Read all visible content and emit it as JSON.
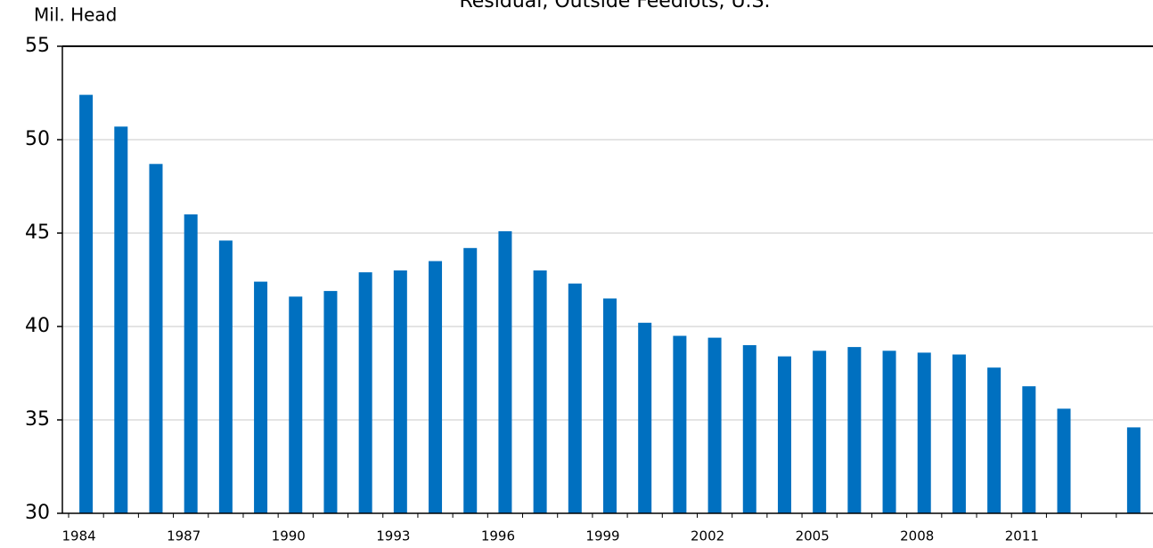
{
  "chart_data": {
    "type": "bar",
    "title": "Residual, Outside Feedlots, U.S.",
    "y_label": "Mil. Head",
    "categories": [
      "1984",
      null,
      null,
      "1987",
      null,
      null,
      "1990",
      null,
      null,
      "1993",
      null,
      null,
      "1996",
      null,
      null,
      "1999",
      null,
      null,
      "2002",
      null,
      null,
      "2005",
      null,
      null,
      "2008",
      null,
      null,
      "2011",
      null,
      null,
      null
    ],
    "values": [
      52.4,
      50.7,
      48.7,
      46.0,
      44.6,
      42.4,
      41.6,
      41.9,
      42.9,
      43.0,
      43.5,
      44.2,
      45.1,
      43.0,
      42.3,
      41.5,
      40.2,
      39.5,
      39.4,
      39.0,
      38.4,
      38.7,
      38.9,
      38.7,
      38.6,
      38.5,
      37.8,
      36.8,
      35.6,
      null,
      34.6
    ],
    "color": "#0070c0",
    "ylim": [
      30,
      55
    ],
    "yticks": [
      30,
      35,
      40,
      45,
      50,
      55
    ],
    "grid": true
  }
}
